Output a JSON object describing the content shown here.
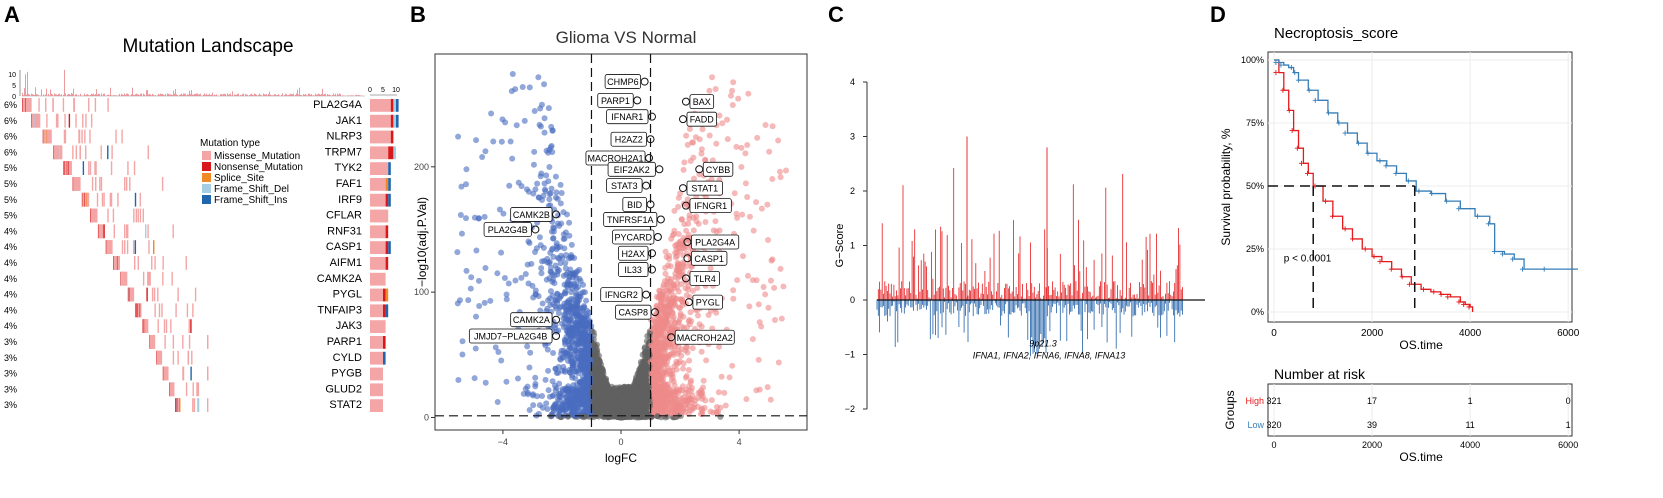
{
  "panel_labels": [
    "A",
    "B",
    "C",
    "D"
  ],
  "chart_data": [
    {
      "type": "heatmap",
      "title": "Mutation Landscape",
      "top_axis_ticks": [
        "10",
        "5",
        "0"
      ],
      "side_axis_ticks": [
        "0",
        "5",
        "10"
      ],
      "legend_title": "Mutation type",
      "mutation_types": [
        {
          "name": "Missense_Mutation",
          "color": "#f4a6a6"
        },
        {
          "name": "Nonsense_Mutation",
          "color": "#d7191c"
        },
        {
          "name": "Splice_Site",
          "color": "#f08a24"
        },
        {
          "name": "Frame_Shift_Del",
          "color": "#a6cee3"
        },
        {
          "name": "Frame_Shift_Ins",
          "color": "#2166ac"
        }
      ],
      "genes": [
        {
          "name": "PLA2G4A",
          "pct": "6%",
          "n": 26,
          "start": 0,
          "counts": [
            8,
            1,
            0,
            1,
            1
          ]
        },
        {
          "name": "JAK1",
          "pct": "6%",
          "n": 25,
          "start": 20,
          "counts": [
            8,
            1,
            0,
            1,
            1
          ]
        },
        {
          "name": "NLRP3",
          "pct": "6%",
          "n": 24,
          "start": 45,
          "counts": [
            8,
            1,
            0,
            0,
            0
          ]
        },
        {
          "name": "TRPM7",
          "pct": "6%",
          "n": 24,
          "start": 68,
          "counts": [
            7,
            2,
            0,
            1,
            0
          ]
        },
        {
          "name": "TYK2",
          "pct": "5%",
          "n": 22,
          "start": 90,
          "counts": [
            7,
            0,
            0,
            0,
            1
          ]
        },
        {
          "name": "FAF1",
          "pct": "5%",
          "n": 21,
          "start": 110,
          "counts": [
            6,
            0,
            1,
            0,
            1
          ]
        },
        {
          "name": "IRF9",
          "pct": "5%",
          "n": 20,
          "start": 130,
          "counts": [
            6,
            1,
            0,
            0,
            1
          ]
        },
        {
          "name": "CFLAR",
          "pct": "5%",
          "n": 19,
          "start": 148,
          "counts": [
            7,
            0,
            0,
            0,
            0
          ]
        },
        {
          "name": "RNF31",
          "pct": "4%",
          "n": 18,
          "start": 165,
          "counts": [
            6,
            1,
            0,
            0,
            0
          ]
        },
        {
          "name": "CASP1",
          "pct": "4%",
          "n": 18,
          "start": 182,
          "counts": [
            6,
            1,
            0,
            0,
            1
          ]
        },
        {
          "name": "AIFM1",
          "pct": "4%",
          "n": 17,
          "start": 198,
          "counts": [
            6,
            1,
            0,
            0,
            0
          ]
        },
        {
          "name": "CAMK2A",
          "pct": "4%",
          "n": 17,
          "start": 214,
          "counts": [
            6,
            0,
            0,
            0,
            0
          ]
        },
        {
          "name": "PYGL",
          "pct": "4%",
          "n": 16,
          "start": 230,
          "counts": [
            5,
            1,
            1,
            0,
            0
          ]
        },
        {
          "name": "TNFAIP3",
          "pct": "4%",
          "n": 16,
          "start": 246,
          "counts": [
            5,
            1,
            0,
            0,
            1
          ]
        },
        {
          "name": "JAK3",
          "pct": "4%",
          "n": 15,
          "start": 262,
          "counts": [
            6,
            0,
            0,
            0,
            0
          ]
        },
        {
          "name": "PARP1",
          "pct": "3%",
          "n": 15,
          "start": 277,
          "counts": [
            5,
            1,
            0,
            0,
            0
          ]
        },
        {
          "name": "CYLD",
          "pct": "3%",
          "n": 14,
          "start": 292,
          "counts": [
            5,
            0,
            0,
            0,
            1
          ]
        },
        {
          "name": "PYGB",
          "pct": "3%",
          "n": 14,
          "start": 306,
          "counts": [
            5,
            0,
            0,
            0,
            0
          ]
        },
        {
          "name": "GLUD2",
          "pct": "3%",
          "n": 13,
          "start": 320,
          "counts": [
            5,
            0,
            0,
            0,
            0
          ]
        },
        {
          "name": "STAT2",
          "pct": "3%",
          "n": 13,
          "start": 333,
          "counts": [
            5,
            0,
            0,
            0,
            0
          ]
        }
      ]
    },
    {
      "type": "scatter",
      "title": "Glioma VS Normal",
      "xlabel": "logFC",
      "ylabel": "−log10(adj.P.Val)",
      "xlim": [
        -6.3,
        6.3
      ],
      "ylim": [
        -10,
        290
      ],
      "x_ticks": [
        -4,
        0,
        4
      ],
      "y_ticks": [
        0,
        100,
        200
      ],
      "x_tick_labels": [
        "−4",
        "0",
        "4"
      ],
      "y_tick_labels": [
        "0",
        "100",
        "200"
      ],
      "thresholds": {
        "logFC": 1,
        "p": 1.3
      },
      "colors": {
        "down": "#4a6cc0",
        "ns": "#606060",
        "up": "#ef8a8a"
      },
      "labels": [
        {
          "text": "CHMP6",
          "x": 0.8,
          "y": 268
        },
        {
          "text": "PARP1",
          "x": 0.55,
          "y": 253
        },
        {
          "text": "BAX",
          "x": 2.2,
          "y": 252
        },
        {
          "text": "IFNAR1",
          "x": 1.05,
          "y": 240
        },
        {
          "text": "FADD",
          "x": 2.1,
          "y": 238
        },
        {
          "text": "H2AZ2",
          "x": 1.0,
          "y": 222
        },
        {
          "text": "MACROH2A1",
          "x": 0.95,
          "y": 207
        },
        {
          "text": "EIF2AK2",
          "x": 1.3,
          "y": 198
        },
        {
          "text": "CYBB",
          "x": 2.65,
          "y": 198
        },
        {
          "text": "STAT3",
          "x": 0.85,
          "y": 185
        },
        {
          "text": "STAT1",
          "x": 2.1,
          "y": 183
        },
        {
          "text": "BID",
          "x": 1.0,
          "y": 170
        },
        {
          "text": "IFNGR1",
          "x": 2.2,
          "y": 169
        },
        {
          "text": "TNFRSF1A",
          "x": 1.35,
          "y": 158
        },
        {
          "text": "CAMK2B",
          "x": -2.2,
          "y": 162
        },
        {
          "text": "PLA2G4B",
          "x": -2.9,
          "y": 150
        },
        {
          "text": "PYCARD",
          "x": 1.25,
          "y": 144
        },
        {
          "text": "PLA2G4A",
          "x": 2.25,
          "y": 140
        },
        {
          "text": "H2AX",
          "x": 1.05,
          "y": 131
        },
        {
          "text": "CASP1",
          "x": 2.25,
          "y": 127
        },
        {
          "text": "IL33",
          "x": 1.05,
          "y": 118
        },
        {
          "text": "TLR4",
          "x": 2.2,
          "y": 111
        },
        {
          "text": "IFNGR2",
          "x": 0.85,
          "y": 98
        },
        {
          "text": "PYGL",
          "x": 2.3,
          "y": 92
        },
        {
          "text": "CASP8",
          "x": 1.15,
          "y": 84
        },
        {
          "text": "CAMK2A",
          "x": -2.2,
          "y": 78
        },
        {
          "text": "JMJD7−PLA2G4B",
          "x": -2.2,
          "y": 65
        },
        {
          "text": "MACROH2A2",
          "x": 1.7,
          "y": 64
        }
      ]
    },
    {
      "type": "bar",
      "ylabel": "G−Score",
      "ylim": [
        -2,
        4
      ],
      "y_ticks": [
        -2,
        -1,
        0,
        1,
        2,
        3,
        4
      ],
      "y_tick_labels": [
        "−2",
        "−1",
        "0",
        "1",
        "2",
        "3",
        "4"
      ],
      "annotation_region": "9p21.3",
      "annotation_genes": "IFNA1, IFNA2, IFNA6, IFNA8, IFNA13",
      "colors": {
        "amp": "#e31a1c",
        "del": "#1f5fa8"
      }
    },
    {
      "type": "line",
      "title": "Necroptosis_score",
      "xlabel": "OS.time",
      "ylabel": "Survival probability, %",
      "xlim": [
        0,
        6200
      ],
      "ylim": [
        0,
        100
      ],
      "x_ticks": [
        0,
        2000,
        4000,
        6000
      ],
      "x_tick_labels": [
        "0",
        "2000",
        "4000",
        "6000"
      ],
      "y_ticks": [
        0,
        25,
        50,
        75,
        100
      ],
      "y_tick_labels": [
        "0%",
        "25%",
        "50%",
        "75%",
        "100%"
      ],
      "pvalue_text": "p < 0.0001",
      "median_high": 800,
      "median_low": 2870,
      "series": [
        {
          "name": "High",
          "color": "#e41a1c",
          "x": [
            0,
            100,
            200,
            300,
            400,
            500,
            600,
            700,
            800,
            1000,
            1200,
            1400,
            1600,
            1800,
            2000,
            2200,
            2400,
            2600,
            2800,
            3000,
            3200,
            3400,
            3600,
            3800,
            3900,
            4000,
            4050
          ],
          "y": [
            100,
            95,
            88,
            80,
            72,
            65,
            59,
            55,
            50,
            44,
            38,
            33,
            29,
            25,
            22,
            20,
            17,
            14,
            11,
            9,
            8,
            7,
            6,
            4,
            3,
            2,
            0
          ]
        },
        {
          "name": "Low",
          "color": "#377eb8",
          "x": [
            0,
            100,
            200,
            300,
            400,
            500,
            700,
            900,
            1100,
            1300,
            1500,
            1700,
            1900,
            2100,
            2300,
            2500,
            2700,
            2900,
            3200,
            3500,
            3800,
            4100,
            4400,
            4500,
            4700,
            4900,
            5100,
            5500,
            6200
          ],
          "y": [
            100,
            99,
            98,
            97,
            95,
            92,
            88,
            84,
            79,
            75,
            71,
            67,
            63,
            60,
            58,
            55,
            52,
            48,
            47,
            44,
            41,
            38,
            35,
            24,
            23,
            21,
            17,
            17,
            17
          ]
        }
      ],
      "risk_table": {
        "title": "Number at risk",
        "ylabel": "Groups",
        "xlabel": "OS.time",
        "rows": [
          {
            "name": "High",
            "color": "#e41a1c",
            "values": [
              "321",
              "17",
              "1",
              "0"
            ]
          },
          {
            "name": "Low",
            "color": "#377eb8",
            "values": [
              "320",
              "39",
              "11",
              "1"
            ]
          }
        ],
        "times": [
          0,
          2000,
          4000,
          6000
        ],
        "x_tick_labels": [
          "0",
          "2000",
          "4000",
          "6000"
        ]
      }
    }
  ]
}
